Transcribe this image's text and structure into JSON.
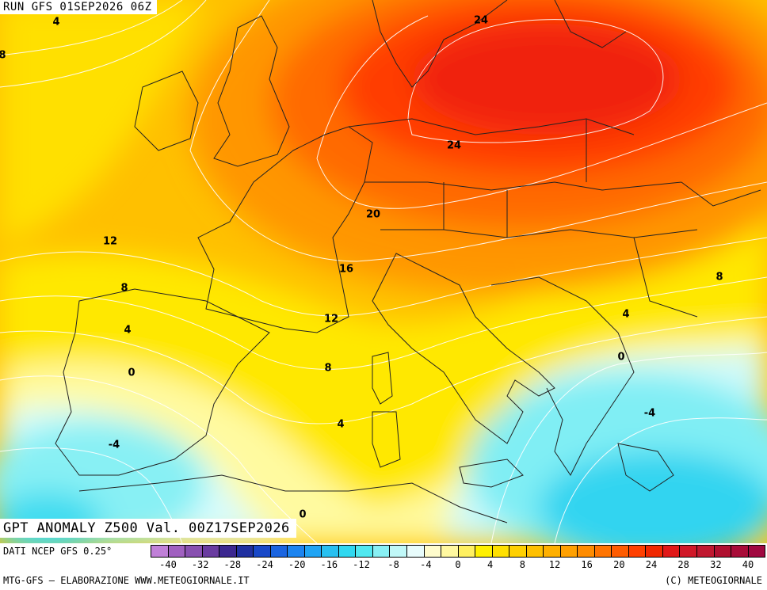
{
  "header": {
    "run_text": "RUN GFS 01SEP2026 06Z"
  },
  "title": {
    "text": "GPT ANOMALY Z500 Val. 00Z17SEP2026"
  },
  "footer": {
    "source_text": "DATI NCEP GFS 0.25°",
    "elaboration_text": "MTG-GFS — ELABORAZIONE WWW.METEOGIORNALE.IT",
    "copyright_text": "(C) METEOGIORNALE"
  },
  "contour_labels": [
    {
      "value": "4"
    },
    {
      "value": "8"
    },
    {
      "value": "24"
    },
    {
      "value": "24"
    },
    {
      "value": "20"
    },
    {
      "value": "16"
    },
    {
      "value": "12"
    },
    {
      "value": "12"
    },
    {
      "value": "8"
    },
    {
      "value": "8"
    },
    {
      "value": "4"
    },
    {
      "value": "0"
    },
    {
      "value": "8"
    },
    {
      "value": "4"
    },
    {
      "value": "0"
    },
    {
      "value": "-4"
    },
    {
      "value": "-4"
    },
    {
      "value": "4"
    },
    {
      "value": "0"
    }
  ],
  "colorbar": {
    "ticks": [
      "-40",
      "-32",
      "-28",
      "-24",
      "-20",
      "-16",
      "-12",
      "-8",
      "-4",
      "0",
      "4",
      "8",
      "12",
      "16",
      "20",
      "24",
      "28",
      "32",
      "40"
    ],
    "colors": [
      "#c080d8",
      "#a060c0",
      "#8850b0",
      "#6a3ca0",
      "#3c2890",
      "#2030a0",
      "#1848c8",
      "#1a64e0",
      "#1c84f0",
      "#20a4f4",
      "#28c0f0",
      "#30d8f0",
      "#50e8f0",
      "#88f0f4",
      "#c0f8f8",
      "#e8fcfc",
      "#fffccc",
      "#fff8a0",
      "#fff060",
      "#fff000",
      "#ffe000",
      "#ffd000",
      "#ffc000",
      "#ffb000",
      "#ffa000",
      "#ff8c00",
      "#ff7400",
      "#ff5c00",
      "#ff4000",
      "#f02800",
      "#e01818",
      "#d01828",
      "#c01830",
      "#b01030",
      "#a80c38",
      "#a00840"
    ]
  }
}
